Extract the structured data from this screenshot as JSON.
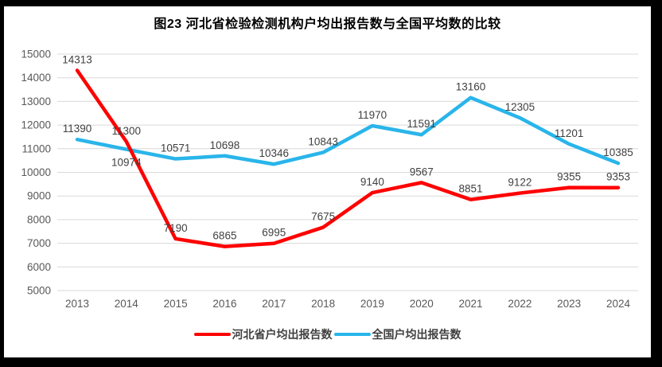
{
  "title": "图23  河北省检验检测机构户均出报告数与全国平均数的比较",
  "chart_data": {
    "type": "line",
    "categories": [
      "2013",
      "2014",
      "2015",
      "2016",
      "2017",
      "2018",
      "2019",
      "2020",
      "2021",
      "2022",
      "2023",
      "2024"
    ],
    "series": [
      {
        "name": "河北省户均出报告数",
        "color": "#fe0000",
        "values": [
          14313,
          11300,
          7190,
          6865,
          6995,
          7675,
          9140,
          9567,
          8851,
          9122,
          9355,
          9353
        ]
      },
      {
        "name": "全国户均出报告数",
        "color": "#29b5ea",
        "values": [
          11390,
          10974,
          10571,
          10698,
          10346,
          10843,
          11970,
          11591,
          13160,
          12305,
          11201,
          10385
        ]
      }
    ],
    "yticks": [
      5000,
      6000,
      7000,
      8000,
      9000,
      10000,
      11000,
      12000,
      13000,
      14000,
      15000
    ],
    "ylim": [
      5000,
      15000
    ],
    "grid": "horizontal",
    "legend_position": "bottom",
    "data_labels": true
  },
  "style": {
    "grid_color": "#d9d9d9",
    "tick_label_color": "#595959",
    "data_label_color": "#404040",
    "frame_color": "#000000"
  }
}
